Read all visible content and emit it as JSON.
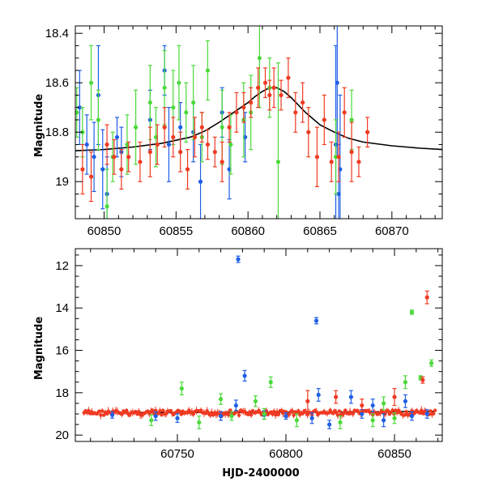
{
  "chart_data": [
    {
      "type": "scatter",
      "panel": "top",
      "title": "",
      "xlabel": "",
      "ylabel": "Magnitude",
      "xlim": [
        60848,
        60873.5
      ],
      "ylim": [
        19.15,
        18.37
      ],
      "y_inverted": true,
      "x_ticks": [
        "60850",
        "60855",
        "60860",
        "60865",
        "60870"
      ],
      "y_ticks": [
        "18.4",
        "18.6",
        "18.8",
        "19"
      ],
      "colors": {
        "blue": "#1f5fe6",
        "green": "#4cd93a",
        "red": "#f03a22",
        "model": "#000000"
      },
      "model_curve": {
        "description": "peaked model fit",
        "x": [
          60848,
          60850,
          60852,
          60854,
          60856,
          60857,
          60858,
          60859,
          60860,
          60860.5,
          60861,
          60861.5,
          60862,
          60862.5,
          60863,
          60864,
          60865,
          60866,
          60867,
          60868,
          60870,
          60872,
          60873.5
        ],
        "y": [
          18.875,
          18.87,
          18.86,
          18.845,
          18.82,
          18.795,
          18.76,
          18.72,
          18.68,
          18.655,
          18.635,
          18.62,
          18.62,
          18.635,
          18.66,
          18.72,
          18.77,
          18.8,
          18.825,
          18.84,
          18.855,
          18.865,
          18.87
        ]
      },
      "series": [
        {
          "name": "",
          "color": "blue",
          "points": [
            [
              60848.3,
              18.7,
              0.15
            ],
            [
              60848.8,
              18.85,
              0.12
            ],
            [
              60849.3,
              18.9,
              0.14
            ],
            [
              60849.6,
              18.65,
              0.2
            ],
            [
              60849.9,
              18.95,
              0.16
            ],
            [
              60850.2,
              19.05,
              0.15
            ],
            [
              60850.9,
              18.82,
              0.08
            ],
            [
              60851.2,
              18.88,
              0.1
            ],
            [
              60853.2,
              18.75,
              0.12
            ],
            [
              60854.2,
              18.55,
              0.1
            ],
            [
              60854.5,
              18.85,
              0.15
            ],
            [
              60855.3,
              18.78,
              0.1
            ],
            [
              60856.2,
              18.8,
              0.12
            ],
            [
              60856.7,
              19.0,
              0.15
            ],
            [
              60858.2,
              18.72,
              0.1
            ],
            [
              60858.7,
              18.95,
              0.12
            ],
            [
              60859.8,
              18.82,
              0.1
            ],
            [
              60866.1,
              18.85,
              0.4
            ],
            [
              60866.2,
              18.6,
              0.3
            ],
            [
              60866.3,
              19.05,
              0.2
            ],
            [
              60866.4,
              18.95,
              0.3
            ]
          ]
        },
        {
          "name": "",
          "color": "green",
          "points": [
            [
              60848.1,
              18.72,
              0.1
            ],
            [
              60848.5,
              18.8,
              0.1
            ],
            [
              60849.1,
              18.6,
              0.15
            ],
            [
              60849.6,
              18.75,
              0.12
            ],
            [
              60850.2,
              19.1,
              0.15
            ],
            [
              60850.6,
              18.9,
              0.1
            ],
            [
              60851.6,
              18.85,
              0.12
            ],
            [
              60852.2,
              18.78,
              0.15
            ],
            [
              60853.2,
              18.68,
              0.15
            ],
            [
              60853.6,
              18.82,
              0.12
            ],
            [
              60854.2,
              18.62,
              0.15
            ],
            [
              60854.8,
              18.7,
              0.15
            ],
            [
              60855.2,
              18.6,
              0.15
            ],
            [
              60855.7,
              18.72,
              0.12
            ],
            [
              60856.2,
              18.68,
              0.15
            ],
            [
              60856.8,
              18.82,
              0.1
            ],
            [
              60857.2,
              18.55,
              0.12
            ],
            [
              60858.2,
              18.78,
              0.15
            ],
            [
              60858.8,
              18.85,
              0.12
            ],
            [
              60859.7,
              18.75,
              0.15
            ],
            [
              60860.2,
              18.72,
              0.15
            ],
            [
              60860.8,
              18.5,
              0.2
            ],
            [
              60861.5,
              18.62,
              0.12
            ],
            [
              60862.1,
              18.92,
              0.4
            ],
            [
              60866.1,
              18.9,
              0.15
            ],
            [
              60867.2,
              18.75,
              0.12
            ]
          ]
        },
        {
          "name": "",
          "color": "red",
          "points": [
            [
              60848.5,
              18.95,
              0.1
            ],
            [
              60849.1,
              18.98,
              0.1
            ],
            [
              60850.2,
              18.85,
              0.08
            ],
            [
              60850.7,
              18.9,
              0.07
            ],
            [
              60851.2,
              18.95,
              0.08
            ],
            [
              60851.7,
              18.9,
              0.06
            ],
            [
              60852.5,
              18.92,
              0.08
            ],
            [
              60853.2,
              18.88,
              0.1
            ],
            [
              60853.7,
              18.85,
              0.08
            ],
            [
              60854.2,
              18.78,
              0.08
            ],
            [
              60854.8,
              18.82,
              0.08
            ],
            [
              60855.3,
              18.88,
              0.08
            ],
            [
              60855.8,
              18.95,
              0.08
            ],
            [
              60856.3,
              18.82,
              0.08
            ],
            [
              60856.8,
              18.78,
              0.06
            ],
            [
              60857.2,
              18.85,
              0.06
            ],
            [
              60857.7,
              18.88,
              0.06
            ],
            [
              60858.2,
              18.92,
              0.08
            ],
            [
              60858.7,
              18.78,
              0.06
            ],
            [
              60859.2,
              18.72,
              0.08
            ],
            [
              60859.7,
              18.7,
              0.06
            ],
            [
              60860.2,
              18.68,
              0.06
            ],
            [
              60860.7,
              18.62,
              0.08
            ],
            [
              60861.2,
              18.6,
              0.06
            ],
            [
              60861.5,
              18.65,
              0.06
            ],
            [
              60861.8,
              18.62,
              0.08
            ],
            [
              60862.3,
              18.65,
              0.06
            ],
            [
              60862.8,
              18.58,
              0.08
            ],
            [
              60863.3,
              18.72,
              0.08
            ],
            [
              60863.8,
              18.68,
              0.08
            ],
            [
              60864.2,
              18.8,
              0.1
            ],
            [
              60864.8,
              18.9,
              0.12
            ],
            [
              60865.3,
              18.75,
              0.1
            ],
            [
              60865.8,
              18.92,
              0.08
            ],
            [
              60866.3,
              18.9,
              0.1
            ],
            [
              60866.7,
              18.72,
              0.1
            ],
            [
              60867.2,
              18.88,
              0.12
            ],
            [
              60867.7,
              18.92,
              0.06
            ],
            [
              60868.3,
              18.8,
              0.06
            ]
          ]
        }
      ]
    },
    {
      "type": "scatter",
      "panel": "bottom",
      "title": "",
      "xlabel": "HJD-2400000",
      "ylabel": "Magnitude",
      "xlim": [
        60703,
        60872
      ],
      "ylim": [
        20.3,
        11.2
      ],
      "y_inverted": true,
      "x_ticks": [
        "60750",
        "60800",
        "60850"
      ],
      "y_ticks": [
        "12",
        "14",
        "16",
        "18",
        "20"
      ],
      "colors": {
        "blue": "#1f5fe6",
        "green": "#4cd93a",
        "red": "#f03a22",
        "model": "#000000"
      },
      "model_curve": {
        "description": "nearly flat baseline model",
        "x": [
          60725,
          60760,
          60800,
          60840,
          60868
        ],
        "y": [
          18.95,
          18.93,
          18.92,
          18.9,
          18.88
        ]
      },
      "series": [
        {
          "name": "",
          "color": "blue",
          "points": [
            [
              60778,
              11.7,
              0.15
            ],
            [
              60781,
              17.2,
              0.25
            ],
            [
              60814,
              14.6,
              0.15
            ],
            [
              60777,
              18.6,
              0.25
            ],
            [
              60815,
              18.1,
              0.3
            ],
            [
              60830,
              18.2,
              0.3
            ],
            [
              60840,
              18.6,
              0.3
            ],
            [
              60855,
              18.4,
              0.3
            ],
            [
              60720,
              19.05,
              0.15
            ],
            [
              60740,
              19.1,
              0.2
            ],
            [
              60750,
              19.2,
              0.2
            ],
            [
              60770,
              19.1,
              0.2
            ],
            [
              60790,
              19.05,
              0.2
            ],
            [
              60800,
              19.1,
              0.15
            ],
            [
              60812,
              19.2,
              0.25
            ],
            [
              60820,
              19.5,
              0.2
            ],
            [
              60835,
              19.0,
              0.2
            ],
            [
              60845,
              19.3,
              0.3
            ],
            [
              60858,
              19.1,
              0.2
            ],
            [
              60865,
              19.0,
              0.2
            ]
          ]
        },
        {
          "name": "",
          "color": "green",
          "points": [
            [
              60752,
              17.8,
              0.3
            ],
            [
              60770,
              18.3,
              0.25
            ],
            [
              60786,
              18.4,
              0.25
            ],
            [
              60793,
              17.5,
              0.25
            ],
            [
              60845,
              18.5,
              0.3
            ],
            [
              60855,
              17.5,
              0.3
            ],
            [
              60858,
              14.2,
              0.1
            ],
            [
              60867,
              16.6,
              0.15
            ],
            [
              60862,
              17.3,
              0.1
            ],
            [
              60738,
              19.3,
              0.25
            ],
            [
              60760,
              19.4,
              0.3
            ],
            [
              60775,
              19.1,
              0.2
            ],
            [
              60790,
              19.0,
              0.25
            ],
            [
              60805,
              19.3,
              0.3
            ],
            [
              60825,
              19.4,
              0.3
            ],
            [
              60840,
              19.3,
              0.3
            ],
            [
              60850,
              19.2,
              0.25
            ]
          ]
        },
        {
          "name": "",
          "color": "red",
          "points": [
            [
              60865,
              13.5,
              0.3
            ],
            [
              60863,
              17.4,
              0.15
            ],
            [
              60850,
              18.2,
              0.4
            ],
            [
              60810,
              18.4,
              0.5
            ],
            [
              60823,
              18.2,
              0.3
            ],
            [
              60835,
              18.6,
              0.3
            ]
          ]
        }
      ],
      "baseline_red_band": {
        "x_start": 60707,
        "x_end": 60869,
        "y_center": 18.95,
        "spread": 0.12
      }
    }
  ]
}
